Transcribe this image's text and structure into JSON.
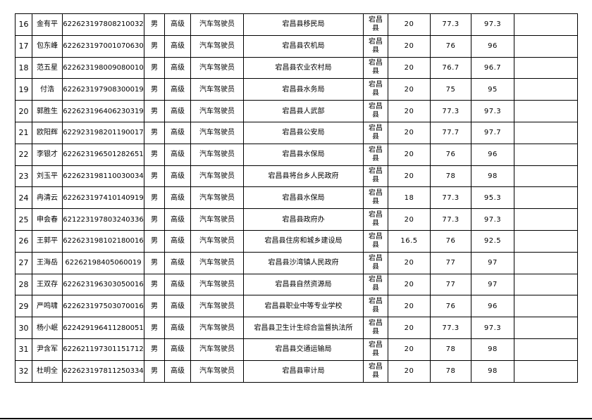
{
  "rows": [
    {
      "no": "16",
      "name": "金有平",
      "id": "622623197808210032",
      "gender": "男",
      "level": "高级",
      "job": "汽车驾驶员",
      "unit": "宕昌县移民局",
      "county": "宕昌县",
      "score1": "20",
      "score2": "77.3",
      "total": "97.3",
      "note": ""
    },
    {
      "no": "17",
      "name": "包东峰",
      "id": "622623197001070630",
      "gender": "男",
      "level": "高级",
      "job": "汽车驾驶员",
      "unit": "宕昌县农机局",
      "county": "宕昌县",
      "score1": "20",
      "score2": "76",
      "total": "96",
      "note": ""
    },
    {
      "no": "18",
      "name": "范五星",
      "id": "622623198009080010",
      "gender": "男",
      "level": "高级",
      "job": "汽车驾驶员",
      "unit": "宕昌县农业农村局",
      "county": "宕昌县",
      "score1": "20",
      "score2": "76.7",
      "total": "96.7",
      "note": ""
    },
    {
      "no": "19",
      "name": "付浩",
      "id": "622623197908300019",
      "gender": "男",
      "level": "高级",
      "job": "汽车驾驶员",
      "unit": "宕昌县水务局",
      "county": "宕昌县",
      "score1": "20",
      "score2": "75",
      "total": "95",
      "note": ""
    },
    {
      "no": "20",
      "name": "郭胜生",
      "id": "622623196406230319",
      "gender": "男",
      "level": "高级",
      "job": "汽车驾驶员",
      "unit": "宕昌县人武部",
      "county": "宕昌县",
      "score1": "20",
      "score2": "77.3",
      "total": "97.3",
      "note": ""
    },
    {
      "no": "21",
      "name": "欧阳辉",
      "id": "622923198201190017",
      "gender": "男",
      "level": "高级",
      "job": "汽车驾驶员",
      "unit": "宕昌县公安局",
      "county": "宕昌县",
      "score1": "20",
      "score2": "77.7",
      "total": "97.7",
      "note": ""
    },
    {
      "no": "22",
      "name": "李银才",
      "id": "622623196501282651",
      "gender": "男",
      "level": "高级",
      "job": "汽车驾驶员",
      "unit": "宕昌县水保局",
      "county": "宕昌县",
      "score1": "20",
      "score2": "76",
      "total": "96",
      "note": ""
    },
    {
      "no": "23",
      "name": "刘玉平",
      "id": "622623198110030034",
      "gender": "男",
      "level": "高级",
      "job": "汽车驾驶员",
      "unit": "宕昌县将台乡人民政府",
      "county": "宕昌县",
      "score1": "20",
      "score2": "78",
      "total": "98",
      "note": ""
    },
    {
      "no": "24",
      "name": "冉清云",
      "id": "622623197410140919",
      "gender": "男",
      "level": "高级",
      "job": "汽车驾驶员",
      "unit": "宕昌县水保局",
      "county": "宕昌县",
      "score1": "18",
      "score2": "77.3",
      "total": "95.3",
      "note": ""
    },
    {
      "no": "25",
      "name": "申会春",
      "id": "621223197803240336",
      "gender": "男",
      "level": "高级",
      "job": "汽车驾驶员",
      "unit": "宕昌县政府办",
      "county": "宕昌县",
      "score1": "20",
      "score2": "77.3",
      "total": "97.3",
      "note": ""
    },
    {
      "no": "26",
      "name": "王郭平",
      "id": "622623198102180016",
      "gender": "男",
      "level": "高级",
      "job": "汽车驾驶员",
      "unit": "宕昌县住房和城乡建设局",
      "county": "宕昌县",
      "score1": "16.5",
      "score2": "76",
      "total": "92.5",
      "note": ""
    },
    {
      "no": "27",
      "name": "王海岳",
      "id": "62262198405060019",
      "gender": "男",
      "level": "高级",
      "job": "汽车驾驶员",
      "unit": "宕昌县沙湾镇人民政府",
      "county": "宕昌县",
      "score1": "20",
      "score2": "77",
      "total": "97",
      "note": ""
    },
    {
      "no": "28",
      "name": "王双存",
      "id": "622623196303050016",
      "gender": "男",
      "level": "高级",
      "job": "汽车驾驶员",
      "unit": "宕昌县自然资源局",
      "county": "宕昌县",
      "score1": "20",
      "score2": "77",
      "total": "97",
      "note": ""
    },
    {
      "no": "29",
      "name": "严鸣啸",
      "id": "622623197503070016",
      "gender": "男",
      "level": "高级",
      "job": "汽车驾驶员",
      "unit": "宕昌县职业中等专业学校",
      "county": "宕昌县",
      "score1": "20",
      "score2": "76",
      "total": "96",
      "note": ""
    },
    {
      "no": "30",
      "name": "杨小岷",
      "id": "622429196411280051",
      "gender": "男",
      "level": "高级",
      "job": "汽车驾驶员",
      "unit": "宕昌县卫生计生综合监督执法所",
      "county": "宕昌县",
      "score1": "20",
      "score2": "77.3",
      "total": "97.3",
      "note": ""
    },
    {
      "no": "31",
      "name": "尹含军",
      "id": "622621197301151712",
      "gender": "男",
      "level": "高级",
      "job": "汽车驾驶员",
      "unit": "宕昌县交通运输局",
      "county": "宕昌县",
      "score1": "20",
      "score2": "78",
      "total": "98",
      "note": ""
    },
    {
      "no": "32",
      "name": "杜明全",
      "id": "622623197811250334",
      "gender": "男",
      "level": "高级",
      "job": "汽车驾驶员",
      "unit": "宕昌县审计局",
      "county": "宕昌县",
      "score1": "20",
      "score2": "78",
      "total": "98",
      "note": ""
    }
  ]
}
